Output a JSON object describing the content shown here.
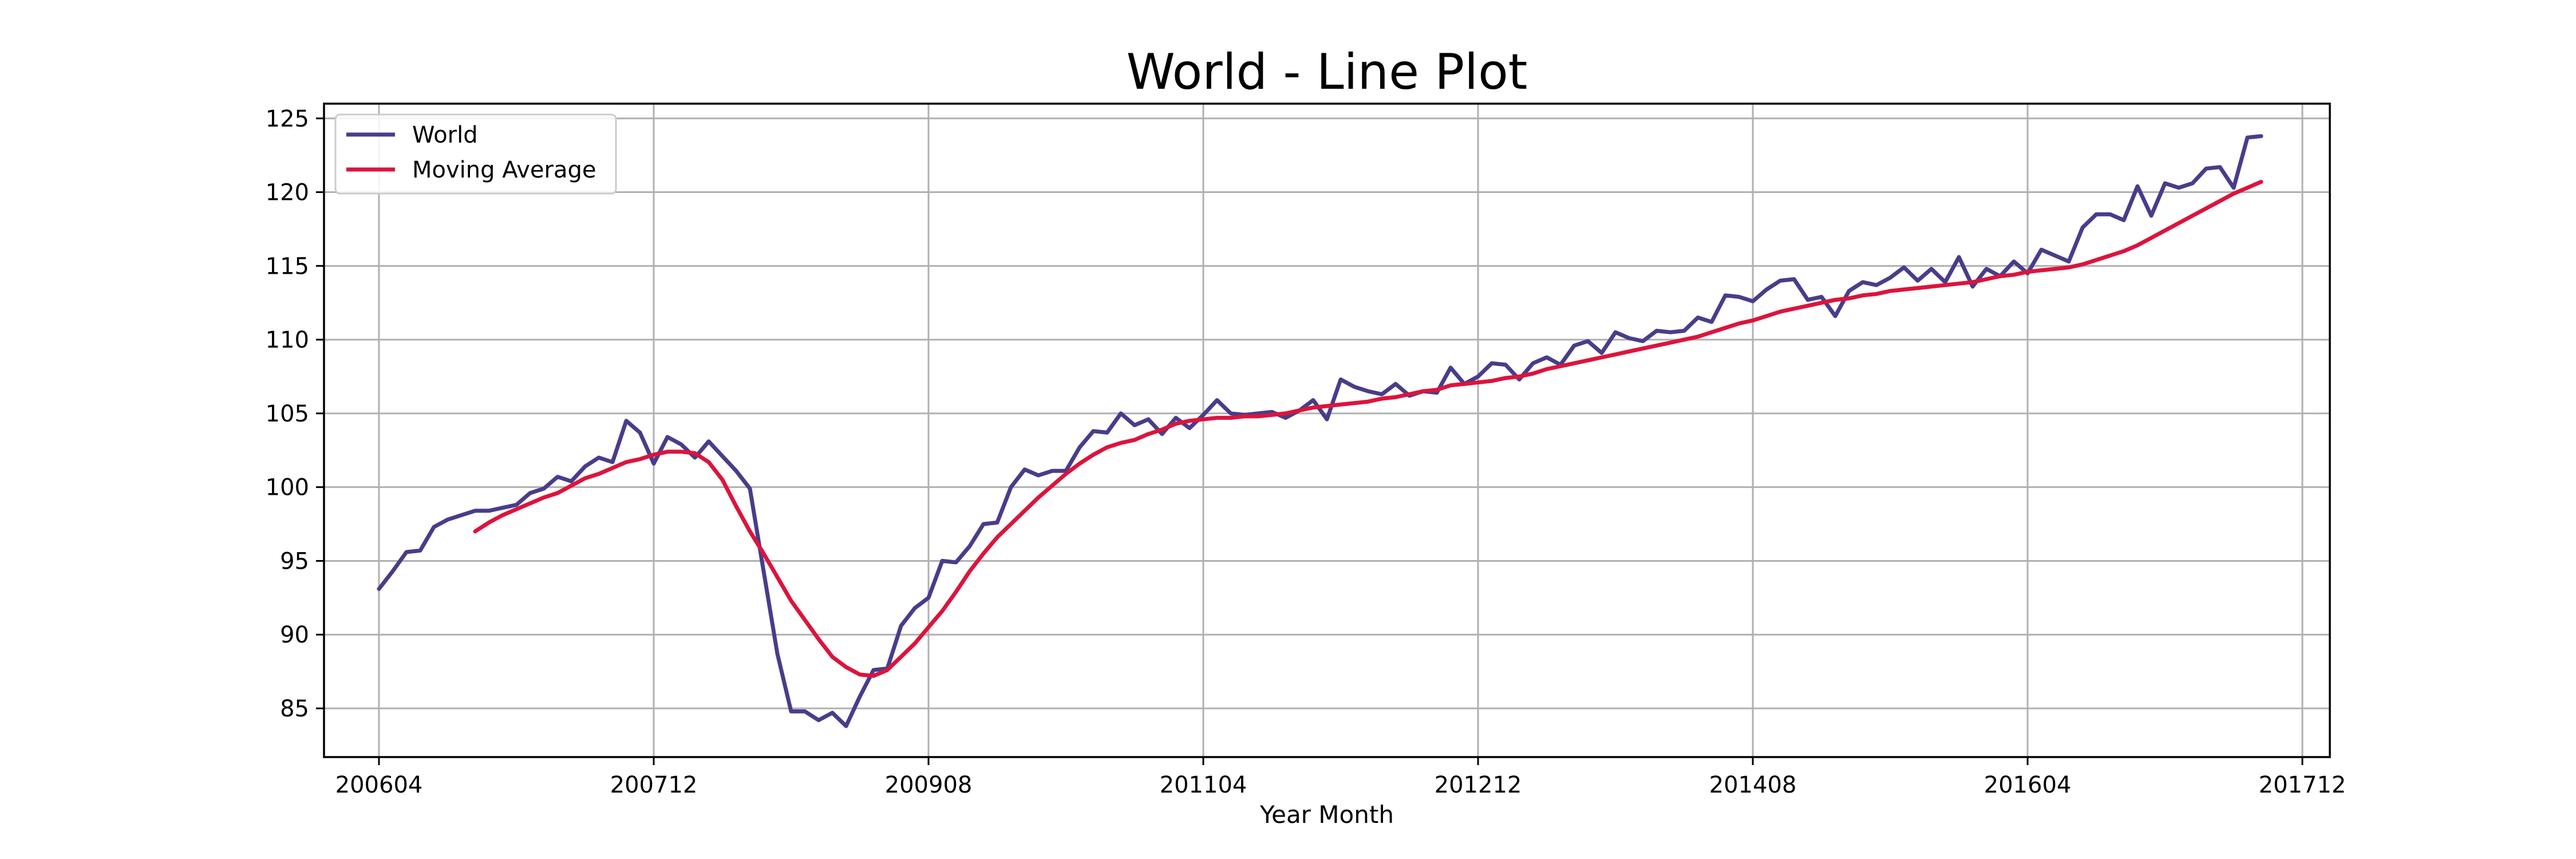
{
  "chart_data": {
    "type": "line",
    "title": "World - Line Plot",
    "xlabel": "Year Month",
    "ylabel": "",
    "x_ticks": [
      "200604",
      "200712",
      "200908",
      "201104",
      "201212",
      "201408",
      "201604",
      "201712"
    ],
    "y_ticks": [
      85,
      90,
      95,
      100,
      105,
      110,
      115,
      120,
      125
    ],
    "ylim": [
      81.7,
      126
    ],
    "xlim": [
      "200512",
      "201802"
    ],
    "grid": true,
    "legend": "top-left",
    "series": [
      {
        "name": "World",
        "color": "#483d8b",
        "start": "200604",
        "values": [
          93.1,
          94.3,
          95.6,
          95.7,
          97.3,
          97.8,
          98.1,
          98.4,
          98.4,
          98.6,
          98.8,
          99.6,
          99.9,
          100.7,
          100.4,
          101.4,
          102.0,
          101.7,
          104.5,
          103.7,
          101.6,
          103.4,
          102.9,
          102.0,
          103.1,
          102.1,
          101.1,
          99.9,
          94.3,
          88.7,
          84.8,
          84.8,
          84.2,
          84.7,
          83.8,
          85.8,
          87.6,
          87.7,
          90.6,
          91.8,
          92.5,
          95.0,
          94.9,
          96.0,
          97.5,
          97.6,
          100.0,
          101.2,
          100.8,
          101.1,
          101.1,
          102.7,
          103.8,
          103.7,
          105.0,
          104.2,
          104.6,
          103.6,
          104.7,
          104.0,
          104.9,
          105.9,
          105.0,
          104.9,
          105.0,
          105.1,
          104.7,
          105.2,
          105.9,
          104.6,
          107.3,
          106.8,
          106.5,
          106.3,
          107.0,
          106.2,
          106.5,
          106.4,
          108.1,
          107.0,
          107.5,
          108.4,
          108.3,
          107.3,
          108.4,
          108.8,
          108.3,
          109.6,
          109.9,
          109.1,
          110.5,
          110.1,
          109.9,
          110.6,
          110.5,
          110.6,
          111.5,
          111.2,
          113.0,
          112.9,
          112.6,
          113.4,
          114.0,
          114.1,
          112.7,
          112.9,
          111.6,
          113.3,
          113.9,
          113.7,
          114.2,
          114.9,
          114.0,
          114.8,
          113.9,
          115.6,
          113.6,
          114.8,
          114.3,
          115.3,
          114.5,
          116.1,
          115.7,
          115.3,
          117.6,
          118.5,
          118.5,
          118.1,
          120.4,
          118.4,
          120.6,
          120.3,
          120.6,
          121.6,
          121.7,
          120.3,
          123.7,
          123.8
        ]
      },
      {
        "name": "Moving Average",
        "color": "#dc143c",
        "start": "200611",
        "values": [
          97.0,
          97.6,
          98.1,
          98.5,
          98.9,
          99.3,
          99.6,
          100.1,
          100.6,
          100.9,
          101.3,
          101.7,
          101.9,
          102.2,
          102.4,
          102.4,
          102.3,
          101.7,
          100.5,
          98.7,
          97.0,
          95.5,
          93.9,
          92.3,
          91.0,
          89.7,
          88.5,
          87.8,
          87.3,
          87.2,
          87.6,
          88.5,
          89.4,
          90.5,
          91.6,
          92.9,
          94.3,
          95.5,
          96.6,
          97.5,
          98.4,
          99.3,
          100.1,
          100.9,
          101.6,
          102.2,
          102.7,
          103.0,
          103.2,
          103.6,
          103.9,
          104.3,
          104.5,
          104.6,
          104.7,
          104.7,
          104.8,
          104.8,
          104.9,
          105.0,
          105.2,
          105.4,
          105.5,
          105.6,
          105.7,
          105.8,
          106.0,
          106.1,
          106.3,
          106.5,
          106.6,
          106.9,
          107.0,
          107.1,
          107.2,
          107.4,
          107.5,
          107.7,
          108.0,
          108.2,
          108.4,
          108.6,
          108.8,
          109.0,
          109.2,
          109.4,
          109.6,
          109.8,
          110.0,
          110.2,
          110.5,
          110.8,
          111.1,
          111.3,
          111.6,
          111.9,
          112.1,
          112.3,
          112.5,
          112.7,
          112.8,
          113.0,
          113.1,
          113.3,
          113.4,
          113.5,
          113.6,
          113.7,
          113.8,
          113.9,
          114.1,
          114.3,
          114.4,
          114.6,
          114.7,
          114.8,
          114.9,
          115.1,
          115.4,
          115.7,
          116.0,
          116.4,
          116.9,
          117.4,
          117.9,
          118.4,
          118.9,
          119.4,
          119.9,
          120.3,
          120.7
        ]
      }
    ]
  }
}
